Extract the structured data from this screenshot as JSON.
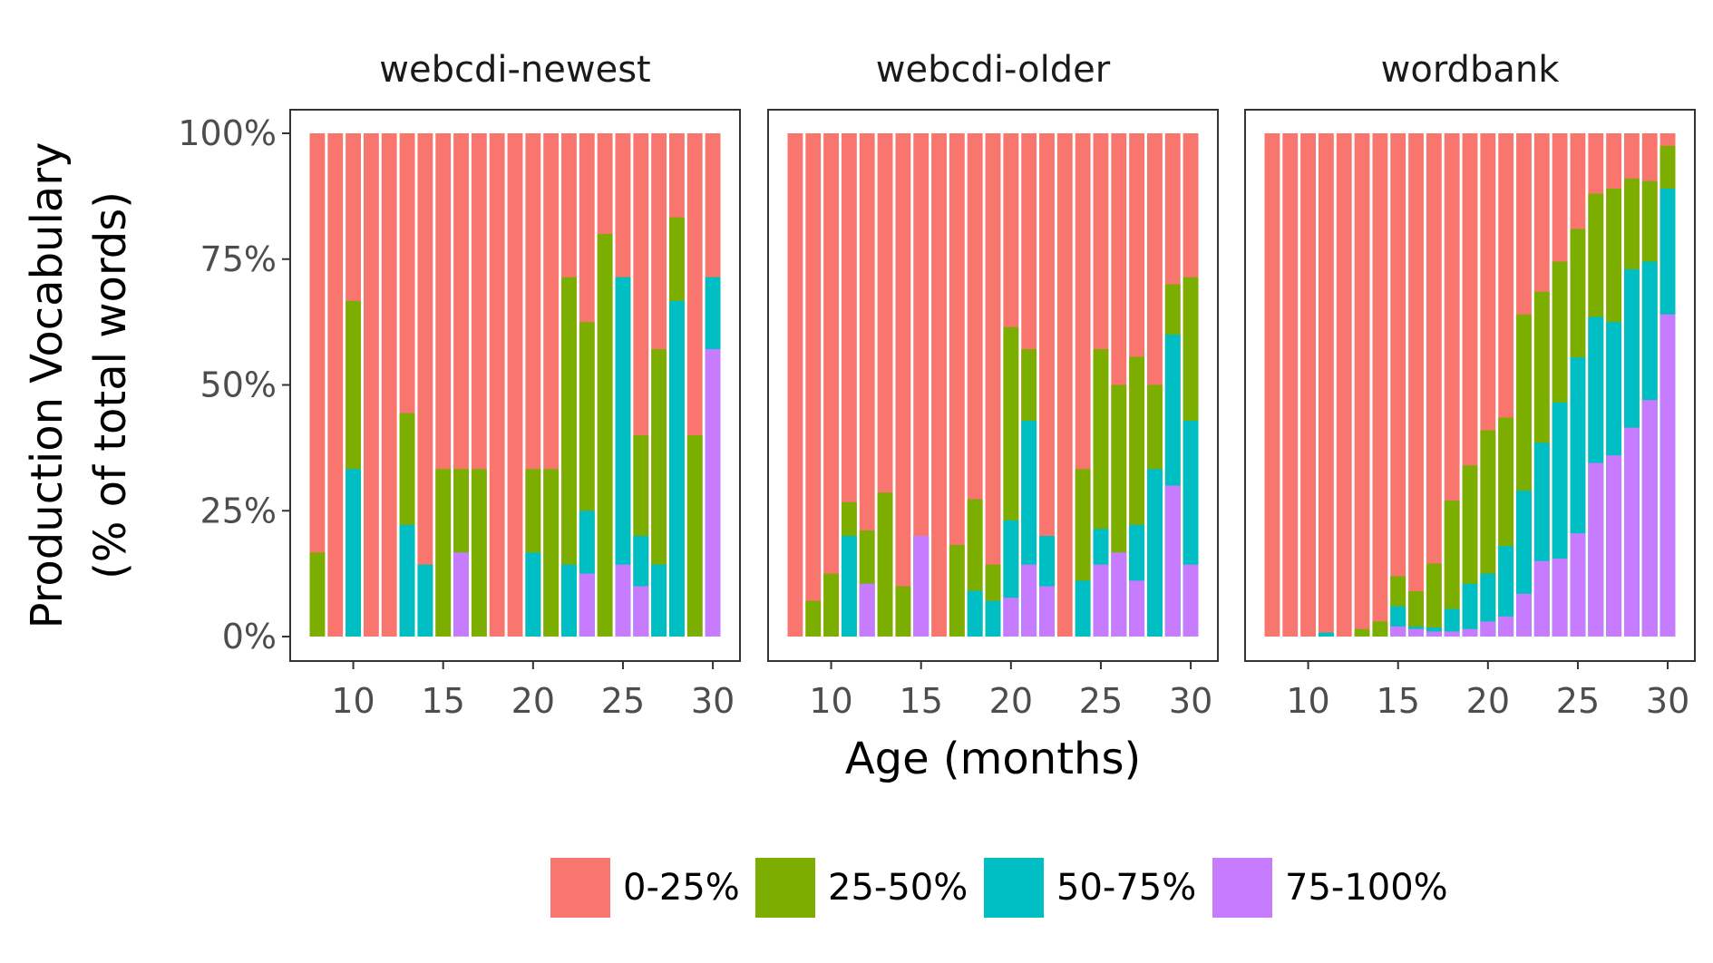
{
  "chart_data": {
    "type": "bar",
    "stacked": true,
    "xlabel": "Age (months)",
    "ylabel": [
      "Production Vocabulary",
      "(% of total words)"
    ],
    "ylim": [
      0,
      1
    ],
    "y_ticks": [
      0,
      0.25,
      0.5,
      0.75,
      1.0
    ],
    "y_tick_labels": [
      "0%",
      "25%",
      "50%",
      "75%",
      "100%"
    ],
    "x_range": [
      8,
      30
    ],
    "x_ticks": [
      10,
      15,
      20,
      25,
      30
    ],
    "x_tick_labels": [
      "10",
      "15",
      "20",
      "25",
      "30"
    ],
    "grid": false,
    "legend_position": "bottom",
    "categories": [
      "0-25%",
      "25-50%",
      "50-75%",
      "75-100%"
    ],
    "colors": {
      "0-25%": "#F8766D",
      "25-50%": "#7CAE00",
      "50-75%": "#00BFC4",
      "75-100%": "#C77CFF"
    },
    "x": [
      8,
      9,
      10,
      11,
      12,
      13,
      14,
      15,
      16,
      17,
      18,
      19,
      20,
      21,
      22,
      23,
      24,
      25,
      26,
      27,
      28,
      29,
      30
    ],
    "panels": [
      {
        "name": "webcdi-newest",
        "cumulative": [
          {
            "category": "75-100%",
            "values": [
              0,
              0,
              0,
              0,
              0,
              0,
              0,
              0,
              0.167,
              0,
              0,
              0,
              0,
              0,
              0,
              0.125,
              0,
              0.143,
              0.1,
              0,
              0,
              0,
              0.571
            ]
          },
          {
            "category": "50-75%",
            "values": [
              0,
              0,
              0.333,
              0,
              0,
              0.222,
              0.143,
              0,
              0.167,
              0,
              0,
              0,
              0.167,
              0,
              0.143,
              0.25,
              0,
              0.714,
              0.2,
              0.143,
              0.667,
              0,
              0.714
            ]
          },
          {
            "category": "25-50%",
            "values": [
              0.167,
              0,
              0.667,
              0,
              0,
              0.444,
              0.143,
              0.333,
              0.333,
              0.333,
              0,
              0,
              0.333,
              0.333,
              0.714,
              0.625,
              0.8,
              0.714,
              0.4,
              0.571,
              0.833,
              0.4,
              0.714
            ]
          },
          {
            "category": "0-25%",
            "values": [
              1,
              1,
              1,
              1,
              1,
              1,
              1,
              1,
              1,
              1,
              1,
              1,
              1,
              1,
              1,
              1,
              1,
              1,
              1,
              1,
              1,
              1,
              1
            ]
          }
        ]
      },
      {
        "name": "webcdi-older",
        "cumulative": [
          {
            "category": "75-100%",
            "values": [
              0,
              0,
              0,
              0,
              0.105,
              0,
              0,
              0.2,
              0,
              0,
              0,
              0,
              0.077,
              0.143,
              0.1,
              0,
              0,
              0.143,
              0.167,
              0.111,
              0,
              0.3,
              0.143
            ]
          },
          {
            "category": "50-75%",
            "values": [
              0,
              0,
              0,
              0.2,
              0.105,
              0,
              0,
              0.2,
              0,
              0,
              0.091,
              0.071,
              0.231,
              0.429,
              0.2,
              0,
              0.111,
              0.214,
              0.167,
              0.222,
              0.333,
              0.6,
              0.429
            ]
          },
          {
            "category": "25-50%",
            "values": [
              0,
              0.071,
              0.125,
              0.267,
              0.211,
              0.286,
              0.1,
              0.2,
              0,
              0.182,
              0.273,
              0.143,
              0.615,
              0.571,
              0.2,
              0,
              0.333,
              0.571,
              0.5,
              0.556,
              0.5,
              0.7,
              0.714
            ]
          },
          {
            "category": "0-25%",
            "values": [
              1,
              1,
              1,
              1,
              1,
              1,
              1,
              1,
              1,
              1,
              1,
              1,
              1,
              1,
              1,
              1,
              1,
              1,
              1,
              1,
              1,
              1,
              1
            ]
          }
        ]
      },
      {
        "name": "wordbank",
        "cumulative": [
          {
            "category": "75-100%",
            "values": [
              0,
              0,
              0,
              0,
              0,
              0,
              0,
              0.02,
              0.015,
              0.01,
              0.01,
              0.015,
              0.03,
              0.04,
              0.085,
              0.15,
              0.155,
              0.205,
              0.345,
              0.36,
              0.415,
              0.47,
              0.64
            ]
          },
          {
            "category": "50-75%",
            "values": [
              0,
              0,
              0,
              0.008,
              0,
              0,
              0,
              0.06,
              0.02,
              0.018,
              0.055,
              0.105,
              0.125,
              0.18,
              0.29,
              0.385,
              0.465,
              0.555,
              0.635,
              0.625,
              0.73,
              0.745,
              0.89
            ]
          },
          {
            "category": "25-50%",
            "values": [
              0,
              0,
              0,
              0.008,
              0,
              0.015,
              0.03,
              0.12,
              0.09,
              0.145,
              0.27,
              0.34,
              0.41,
              0.435,
              0.64,
              0.685,
              0.745,
              0.81,
              0.88,
              0.89,
              0.91,
              0.905,
              0.975
            ]
          },
          {
            "category": "0-25%",
            "values": [
              1,
              1,
              1,
              1,
              1,
              1,
              1,
              1,
              1,
              1,
              1,
              1,
              1,
              1,
              1,
              1,
              1,
              1,
              1,
              1,
              1,
              1,
              1
            ]
          }
        ]
      }
    ]
  }
}
